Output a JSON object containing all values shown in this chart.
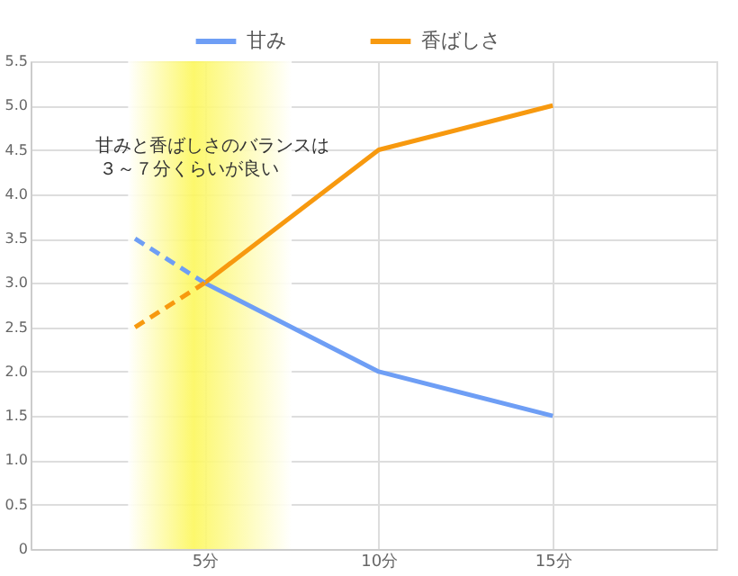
{
  "chart_data": {
    "type": "line",
    "annotations": [
      "甘みと香ばしさのバランスは３～７分くらいが良い"
    ],
    "series": [
      {
        "name": "甘み",
        "color": "#6e9ef5",
        "x": [
          5,
          10,
          15
        ],
        "values": [
          3,
          2,
          1.5
        ],
        "line_style": "solid"
      },
      {
        "name": "香ばしさ",
        "color": "#f7990f",
        "x": [
          5,
          10,
          15
        ],
        "values": [
          3,
          4.5,
          5
        ],
        "line_style": "solid"
      },
      {
        "color": "#6e9ef5",
        "x": [
          3,
          5
        ],
        "values": [
          3.5,
          3
        ],
        "line_style": "dashed"
      },
      {
        "color": "#f7990f",
        "x": [
          3,
          5
        ],
        "values": [
          2.5,
          3
        ],
        "line_style": "dashed"
      }
    ],
    "bands": [
      {
        "axis": "x",
        "from": 2.8,
        "to": 7.5,
        "color": "#fcf75c"
      }
    ],
    "xlim": [
      0,
      19.7
    ],
    "xticks": [
      {
        "value": 5,
        "label": "5分"
      },
      {
        "value": 10,
        "label": "10分"
      },
      {
        "value": 15,
        "label": "15分"
      }
    ],
    "ylim": [
      0,
      5.5
    ],
    "yticks": [
      0,
      0.5,
      {
        "value": 1,
        "label": "1.0"
      },
      1.5,
      {
        "value": 2,
        "label": "2.0"
      },
      2.5,
      {
        "value": 3,
        "label": "3.0"
      },
      3.5,
      {
        "value": 4,
        "label": "4.0"
      },
      4.5,
      {
        "value": 5,
        "label": "5.0"
      },
      5.5
    ],
    "grid": true,
    "legend": "top",
    "marker": "none"
  }
}
